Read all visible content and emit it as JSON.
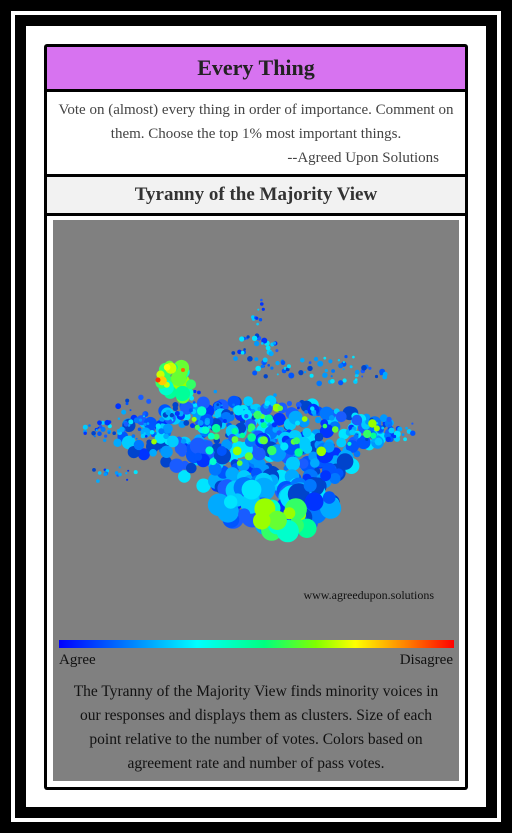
{
  "header": {
    "title": "Every Thing"
  },
  "description": {
    "text": "Vote on (almost) every thing in order of importance. Comment on them. Choose the top 1% most important things.",
    "author": "--Agreed Upon Solutions"
  },
  "view": {
    "title": "Tyranny of the Majority View",
    "watermark": "www.agreedupon.solutions",
    "legend": {
      "left": "Agree",
      "right": "Disagree"
    },
    "caption": "The Tyranny of the Majority View finds minority voices in our responses and displays them as clusters. Size of each point relative to the number of votes. Colors based on agreement rate and number of pass votes."
  },
  "colors": {
    "title_bg": "#d773f0",
    "panel_bg": "#808080",
    "scale": [
      "#0000ff",
      "#00ffff",
      "#00ff00",
      "#ffff00",
      "#ff0000"
    ]
  }
}
